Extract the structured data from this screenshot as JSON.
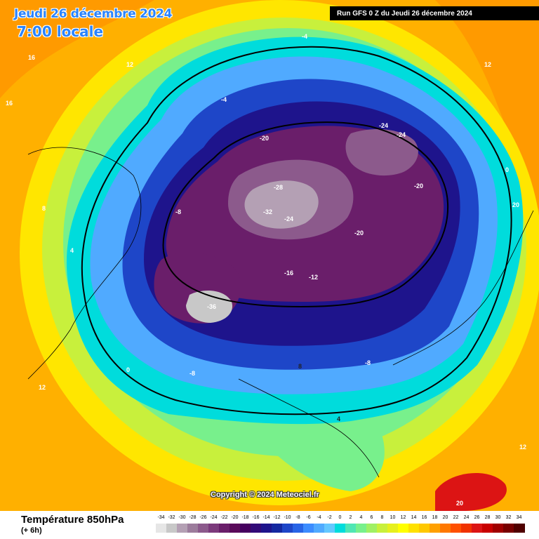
{
  "header": {
    "date": "Jeudi 26 décembre 2024",
    "local_time": "7:00 locale",
    "run": "Run GFS 0 Z du Jeudi 26 décembre 2024"
  },
  "copyright": "Copyright © 2024 Meteociel.fr",
  "footer": {
    "parameter": "Température 850hPa",
    "step": "(+ 6h)"
  },
  "legend": {
    "values": [
      "-34",
      "-32",
      "-30",
      "-28",
      "-26",
      "-24",
      "-22",
      "-20",
      "-18",
      "-16",
      "-14",
      "-12",
      "-10",
      "-8",
      "-6",
      "-4",
      "-2",
      "0",
      "2",
      "4",
      "6",
      "8",
      "10",
      "12",
      "14",
      "16",
      "18",
      "20",
      "22",
      "24",
      "26",
      "28",
      "30",
      "32",
      "34"
    ],
    "colors": [
      "#e6e6e6",
      "#c8c8c8",
      "#b4a0b4",
      "#9c7c9c",
      "#8c5a8c",
      "#7c3a7c",
      "#6a1e6a",
      "#5a0a5a",
      "#46005f",
      "#320a78",
      "#1e148c",
      "#1428a0",
      "#1e46c8",
      "#2864e6",
      "#3c8cff",
      "#50aaff",
      "#64c8ff",
      "#00dcdc",
      "#50e6b4",
      "#78f08c",
      "#a0f064",
      "#c8f03c",
      "#e6f01e",
      "#ffff00",
      "#ffe100",
      "#ffc800",
      "#ffa000",
      "#ff7800",
      "#ff5000",
      "#f03200",
      "#dc1414",
      "#c80000",
      "#a00000",
      "#780000",
      "#500000"
    ]
  },
  "map": {
    "zones": [
      {
        "name": "warm-outer",
        "color": "#ffb000"
      },
      {
        "name": "yellow",
        "color": "#ffe600"
      },
      {
        "name": "lime",
        "color": "#c8f03c"
      },
      {
        "name": "green",
        "color": "#78f08c"
      },
      {
        "name": "cyan",
        "color": "#00dcdc"
      },
      {
        "name": "light-blue",
        "color": "#50aaff"
      },
      {
        "name": "blue",
        "color": "#1e46c8"
      },
      {
        "name": "navy",
        "color": "#1e148c"
      },
      {
        "name": "purple",
        "color": "#6a1e6a"
      },
      {
        "name": "cold-core",
        "color": "#b4a0b4"
      }
    ],
    "isotherm_labels": [
      "16",
      "12",
      "8",
      "4",
      "0",
      "-4",
      "-8",
      "-12",
      "-16",
      "-20",
      "-24",
      "-28",
      "-32",
      "-36",
      "20"
    ]
  }
}
